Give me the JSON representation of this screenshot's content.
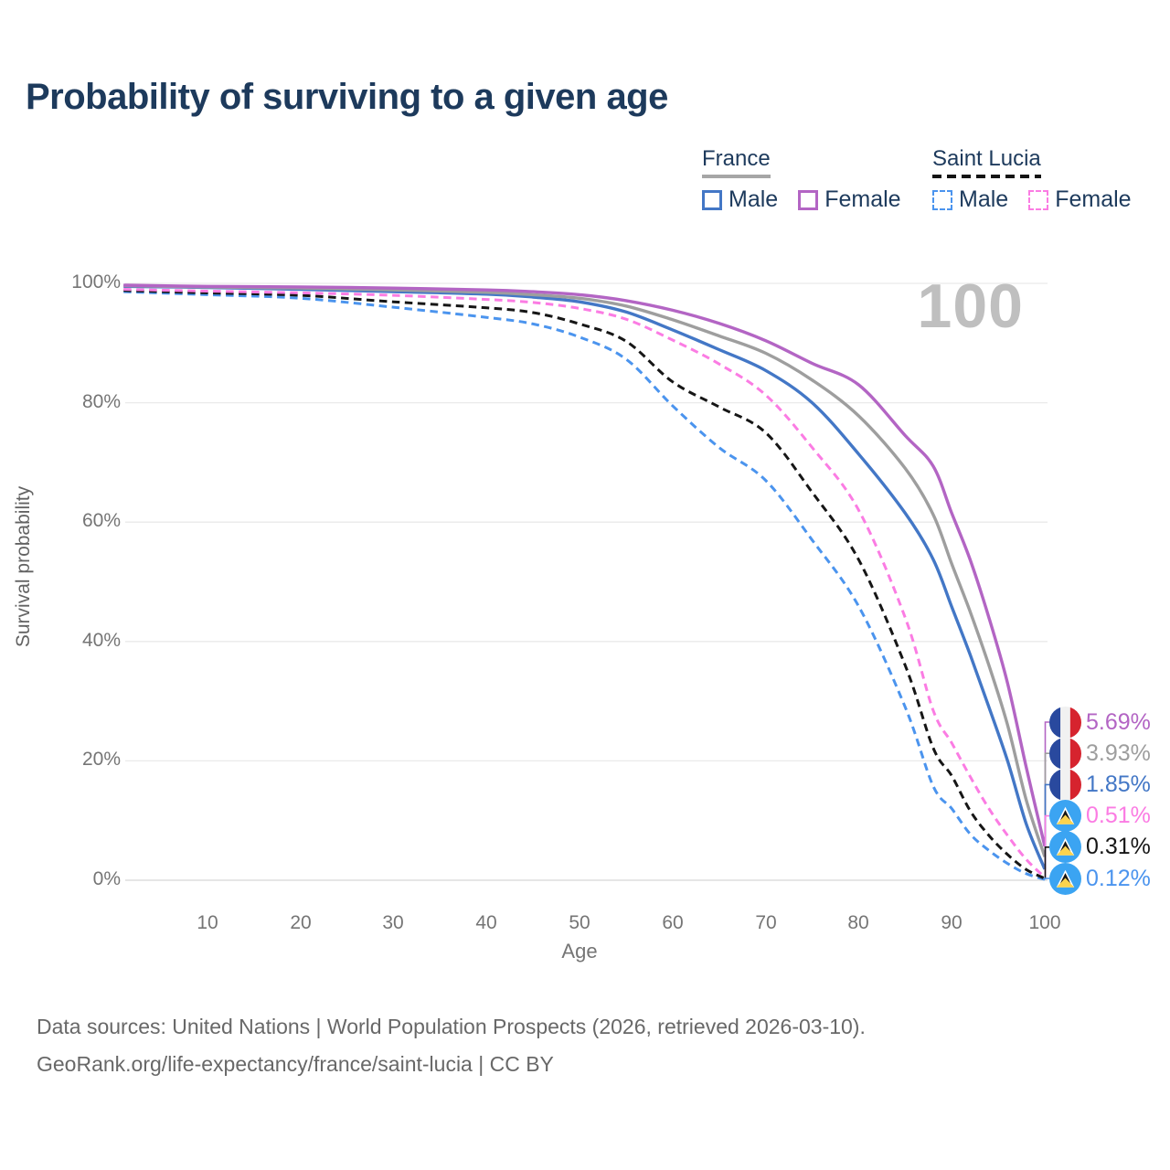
{
  "title": "Probability of surviving to a given age",
  "watermark": "100",
  "legend": {
    "groups": [
      {
        "label": "France",
        "line_style": "solid",
        "items": [
          {
            "label": "Male",
            "color": "#4377c6",
            "dashed": false
          },
          {
            "label": "Female",
            "color": "#b365c4",
            "dashed": false
          }
        ]
      },
      {
        "label": "Saint Lucia",
        "line_style": "dashed",
        "items": [
          {
            "label": "Male",
            "color": "#4b94ee",
            "dashed": true
          },
          {
            "label": "Female",
            "color": "#fb7ce3",
            "dashed": true
          }
        ]
      }
    ]
  },
  "chart_data": {
    "type": "line",
    "title": "Probability of surviving to a given age",
    "xlabel": "Age",
    "ylabel": "Survival probability",
    "xlim": [
      0,
      100
    ],
    "ylim": [
      0,
      100
    ],
    "grid": "horizontal-only",
    "x_ticks": [
      10,
      20,
      30,
      40,
      50,
      60,
      70,
      80,
      90,
      100
    ],
    "y_ticks": [
      {
        "value": 100,
        "label": "100%"
      },
      {
        "value": 80,
        "label": "80%"
      },
      {
        "value": 60,
        "label": "60%"
      },
      {
        "value": 40,
        "label": "40%"
      },
      {
        "value": 20,
        "label": "20%"
      },
      {
        "value": 0,
        "label": "0%"
      }
    ],
    "x": [
      1,
      10,
      20,
      30,
      40,
      45,
      50,
      55,
      60,
      65,
      70,
      75,
      80,
      85,
      88,
      90,
      92,
      94,
      96,
      98,
      100
    ],
    "series": [
      {
        "name": "France Female",
        "country": "France",
        "flag": "fr",
        "color": "#b365c4",
        "dashed": false,
        "end_label": "5.69%",
        "values": [
          99.7,
          99.5,
          99.4,
          99.2,
          98.9,
          98.6,
          98.1,
          97.1,
          95.5,
          93.3,
          90.4,
          86.6,
          83.0,
          74.5,
          69.4,
          61.5,
          53.6,
          44.0,
          33.0,
          19.0,
          5.69
        ]
      },
      {
        "name": "France Both sexes",
        "country": "France",
        "flag": "fr",
        "color": "#9e9e9e",
        "dashed": false,
        "end_label": "3.93%",
        "values": [
          99.6,
          99.4,
          99.2,
          98.9,
          98.5,
          98.1,
          97.5,
          96.2,
          93.9,
          91.2,
          88.3,
          83.8,
          77.8,
          69.0,
          61.3,
          53.0,
          44.9,
          36.0,
          26.0,
          13.5,
          3.93
        ]
      },
      {
        "name": "France Male",
        "country": "France",
        "flag": "fr",
        "color": "#4377c6",
        "dashed": false,
        "end_label": "1.85%",
        "values": [
          99.5,
          99.3,
          99.0,
          98.6,
          98.2,
          97.7,
          96.9,
          95.2,
          92.2,
          88.9,
          85.4,
          80.0,
          71.4,
          61.5,
          53.8,
          45.8,
          37.7,
          29.0,
          20.0,
          9.5,
          1.85
        ]
      },
      {
        "name": "Saint Lucia Female",
        "country": "Saint Lucia",
        "flag": "lc",
        "color": "#fb7ce3",
        "dashed": true,
        "end_label": "0.51%",
        "values": [
          99.0,
          98.7,
          98.4,
          98.0,
          97.3,
          96.8,
          95.8,
          94.0,
          90.5,
          86.5,
          81.3,
          72.5,
          62.0,
          44.0,
          28.5,
          23.0,
          17.3,
          12.0,
          7.5,
          3.5,
          0.51
        ]
      },
      {
        "name": "Saint Lucia Both sexes",
        "country": "Saint Lucia",
        "flag": "lc",
        "color": "#161616",
        "dashed": true,
        "end_label": "0.31%",
        "values": [
          98.8,
          98.4,
          98.0,
          96.9,
          95.9,
          95.1,
          93.2,
          90.3,
          83.5,
          79.3,
          75.0,
          65.0,
          53.7,
          36.0,
          22.2,
          17.5,
          11.6,
          7.5,
          4.3,
          1.8,
          0.31
        ]
      },
      {
        "name": "Saint Lucia Male",
        "country": "Saint Lucia",
        "flag": "lc",
        "color": "#4b94ee",
        "dashed": true,
        "end_label": "0.12%",
        "values": [
          98.6,
          98.1,
          97.5,
          96.0,
          94.3,
          93.2,
          91.0,
          87.3,
          79.5,
          72.5,
          67.0,
          57.0,
          45.9,
          29.0,
          15.8,
          12.0,
          7.7,
          5.0,
          2.8,
          1.1,
          0.12
        ]
      }
    ]
  },
  "footer": {
    "line1": "Data sources: United Nations | World Population Prospects (2026, retrieved 2026-03-10).",
    "line2": "GeoRank.org/life-expectancy/france/saint-lucia | CC BY"
  }
}
